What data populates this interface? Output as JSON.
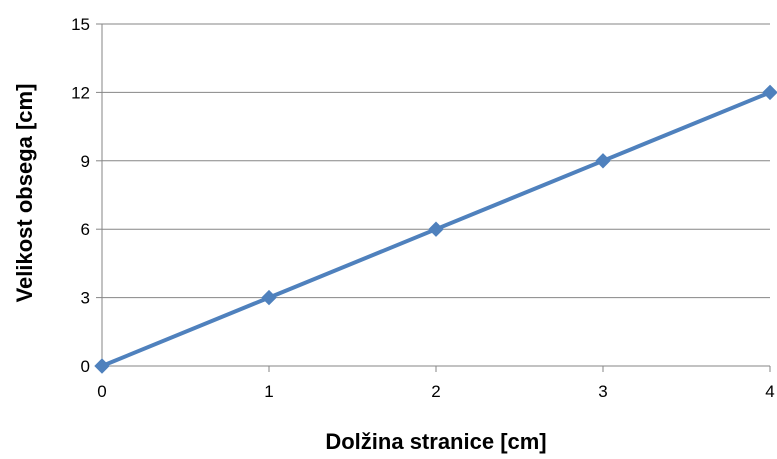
{
  "chart_data": {
    "type": "line",
    "title": "",
    "xlabel": "Dolžina stranice [cm]",
    "ylabel": "Velikost obsega [cm]",
    "xlim": [
      0,
      4
    ],
    "ylim": [
      0,
      15
    ],
    "xticks": [
      "0",
      "1",
      "2",
      "3",
      "4"
    ],
    "yticks": [
      "0",
      "3",
      "6",
      "9",
      "12",
      "15"
    ],
    "grid": "horizontal",
    "legend": "none",
    "series": [
      {
        "color": "#4F81BD",
        "marker": "diamond",
        "x": [
          0,
          1,
          2,
          3,
          4
        ],
        "y": [
          0,
          3,
          6,
          9,
          12
        ]
      }
    ]
  }
}
